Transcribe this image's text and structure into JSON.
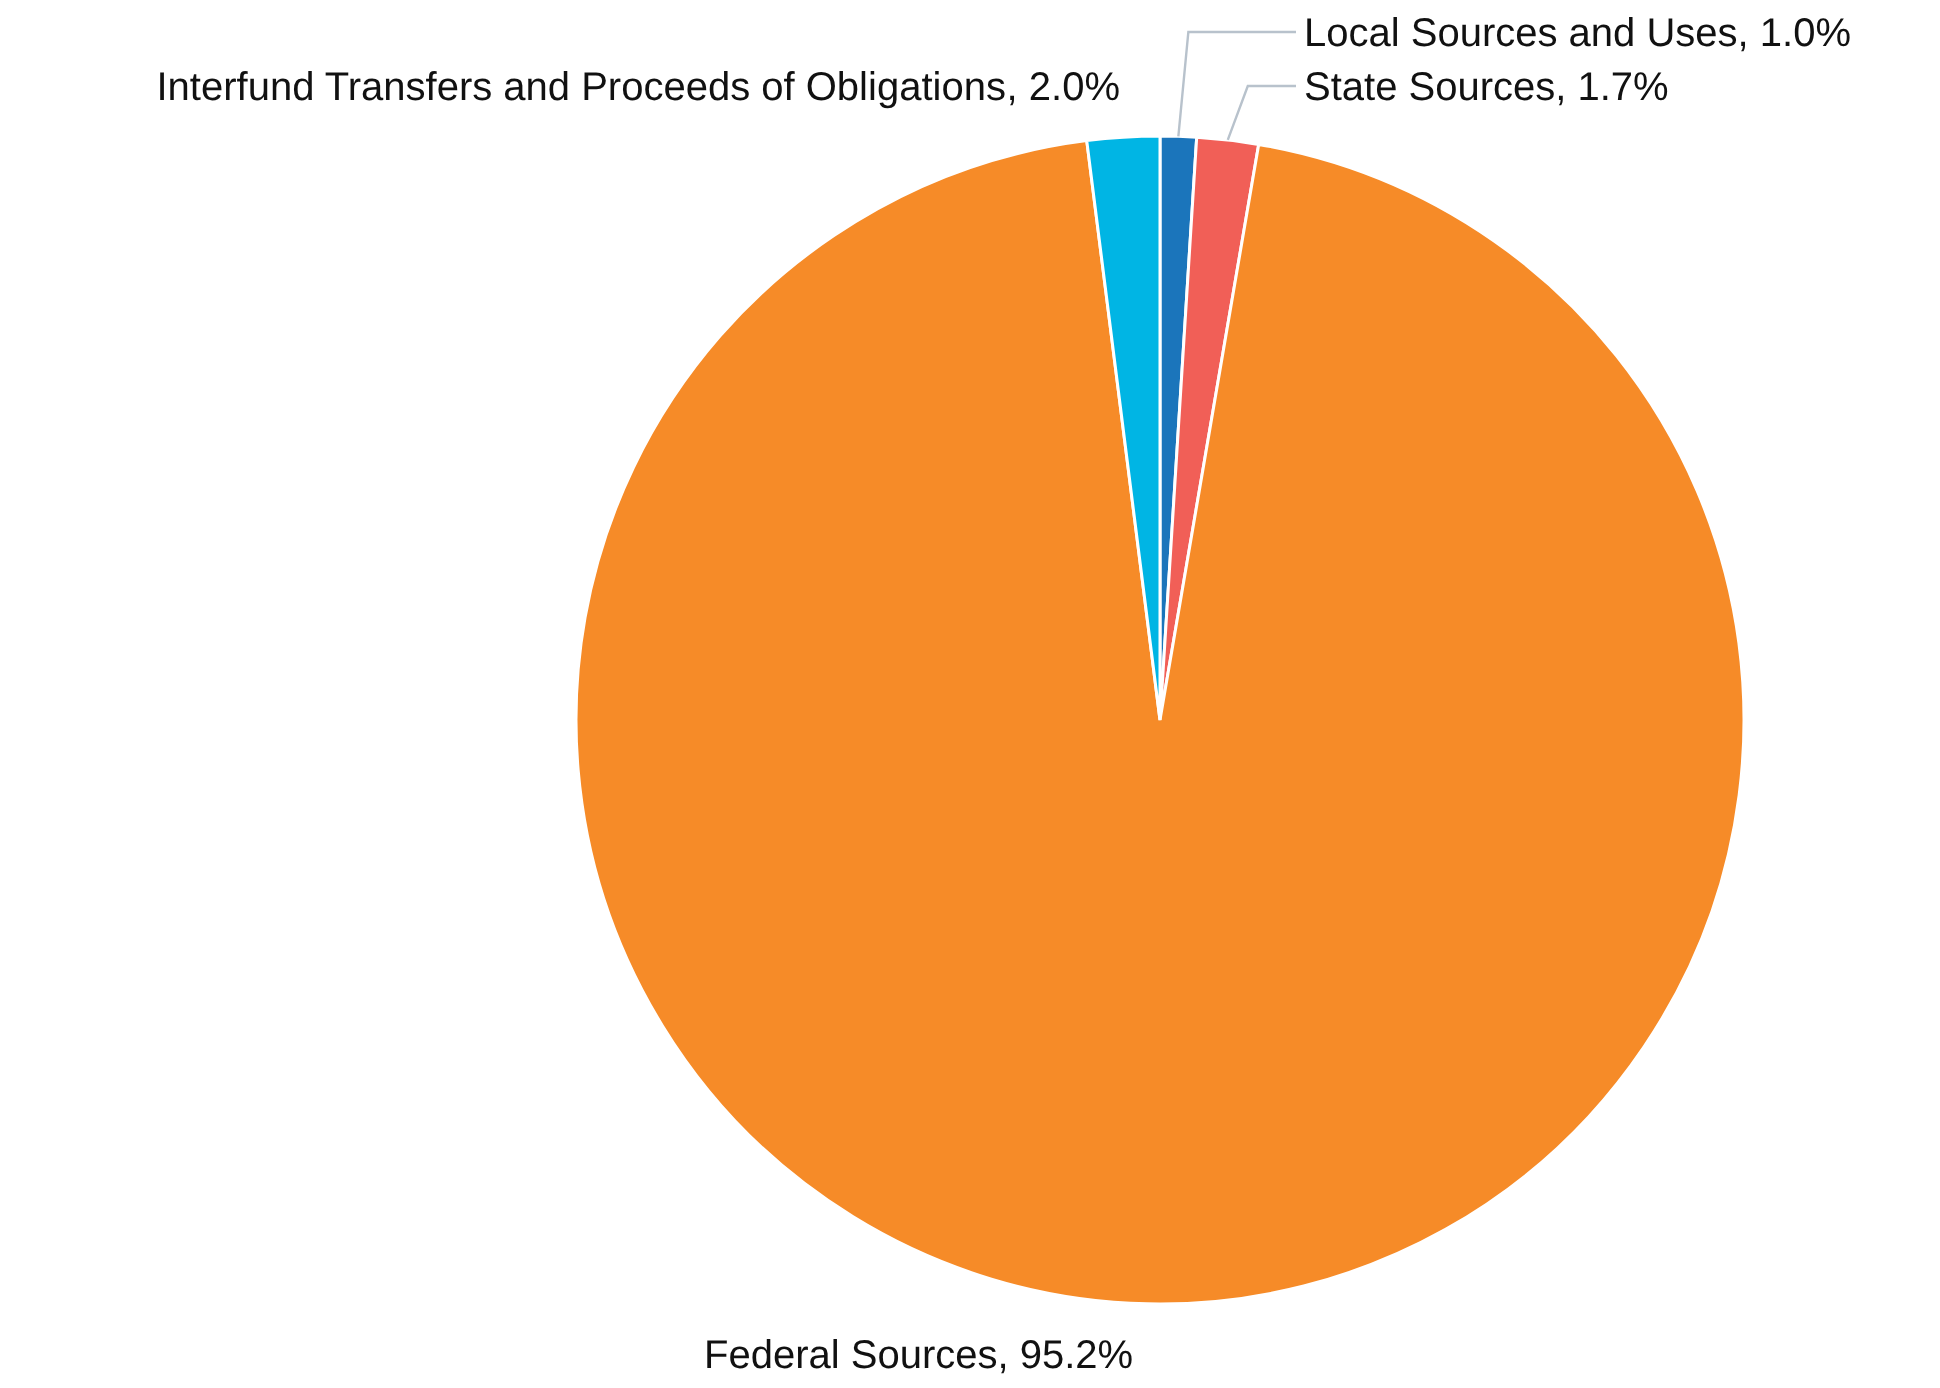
{
  "chart_data": {
    "type": "pie",
    "categories": [
      "Local Sources and Uses",
      "State Sources",
      "Federal Sources",
      "Interfund Transfers and Proceeds of Obligations"
    ],
    "values": [
      1.0,
      1.7,
      95.2,
      2.0
    ],
    "colors": [
      "#1b75bb",
      "#f15f57",
      "#f68b28",
      "#00b5e4"
    ],
    "value_labels": [
      ", 1.0%",
      ", 1.7%",
      ", 95.2%",
      ", 2.0%"
    ]
  }
}
